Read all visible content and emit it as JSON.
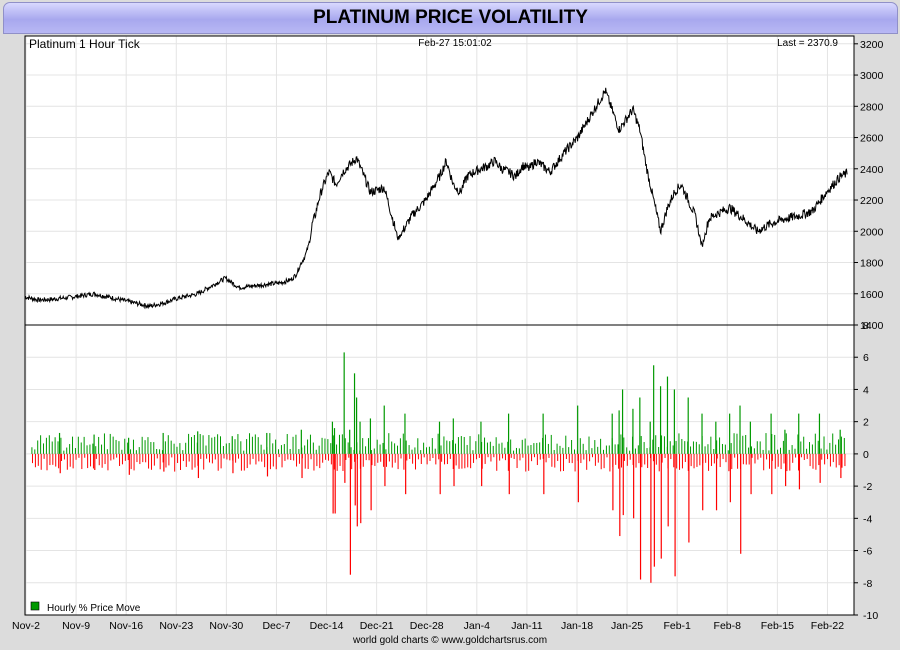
{
  "page": {
    "title": "PLATINUM PRICE VOLATILITY",
    "footer": "world gold charts © www.goldchartsrus.com"
  },
  "colors": {
    "title_bar": "#b0b0f0",
    "price_line": "#000000",
    "up_bar": "#009900",
    "down_bar": "#ff0000",
    "grid": "#e4e4e4",
    "background": "#ffffff"
  },
  "chart_data": [
    {
      "type": "line",
      "subtitle": "Platinum 1 Hour Tick",
      "timestamp": "Feb-27  15:01:02",
      "last_label": "Last = 2370.9",
      "ylim": [
        1400,
        3250
      ],
      "yticks": [
        "1400",
        "1600",
        "1800",
        "2000",
        "2200",
        "2400",
        "2600",
        "2800",
        "3000",
        "3200"
      ],
      "grid": true,
      "x": [
        0,
        2,
        4,
        7,
        10,
        13,
        16,
        18,
        20,
        22,
        25,
        27,
        29,
        31,
        33,
        35,
        37,
        38.5,
        39.2,
        39.6,
        40,
        40.3,
        40.6,
        41,
        41.3,
        41.6,
        42,
        42.5,
        43,
        44,
        45,
        46,
        48,
        50,
        52,
        54,
        56,
        58,
        60,
        61,
        62,
        63,
        64,
        65,
        66,
        67,
        68,
        69,
        70,
        71,
        72,
        73,
        74,
        76,
        78,
        80,
        82,
        84,
        86,
        88,
        89,
        90,
        91,
        92,
        93,
        94,
        95,
        96,
        97,
        98,
        99,
        100,
        102,
        104,
        106,
        108,
        110,
        112,
        114,
        116,
        118,
        119
      ],
      "y": [
        1580,
        1560,
        1565,
        1580,
        1600,
        1570,
        1540,
        1520,
        1540,
        1570,
        1600,
        1650,
        1700,
        1640,
        1650,
        1660,
        1670,
        1690,
        1720,
        1760,
        1800,
        1820,
        1850,
        1900,
        1960,
        2050,
        2100,
        2200,
        2270,
        2380,
        2300,
        2380,
        2470,
        2250,
        2280,
        1950,
        2100,
        2200,
        2350,
        2450,
        2300,
        2250,
        2350,
        2380,
        2400,
        2420,
        2450,
        2400,
        2380,
        2350,
        2420,
        2400,
        2450,
        2380,
        2500,
        2600,
        2750,
        2900,
        2650,
        2780,
        2650,
        2400,
        2200,
        2000,
        2150,
        2250,
        2300,
        2200,
        2100,
        1900,
        2080,
        2110,
        2150,
        2080,
        2000,
        2050,
        2080,
        2100,
        2130,
        2250,
        2350,
        2370
      ]
    },
    {
      "type": "bar",
      "legend": "Hourly % Price Move",
      "ylim": [
        -10,
        8
      ],
      "yticks": [
        "-10",
        "-8",
        "-6",
        "-4",
        "-2",
        "0",
        "2",
        "4",
        "6",
        "8"
      ],
      "grid": true,
      "x": [
        5,
        10,
        15,
        20,
        25,
        30,
        35,
        40,
        44.5,
        44.8,
        46.2,
        47,
        47.7,
        48,
        48.5,
        50,
        52,
        55,
        60,
        62,
        66,
        70,
        75,
        80,
        85,
        86,
        86.5,
        88,
        89,
        90.5,
        91,
        92,
        93,
        94,
        96,
        98,
        100,
        102,
        103.5,
        105,
        108,
        110,
        112,
        115,
        118
      ],
      "up": [
        1.3,
        1.2,
        1.0,
        1.3,
        1.4,
        1.1,
        1.3,
        1.5,
        2.0,
        1.6,
        6.3,
        1.5,
        5.0,
        3.5,
        2.0,
        2.2,
        3.0,
        2.5,
        2.0,
        2.2,
        2.0,
        2.5,
        2.5,
        3.0,
        2.5,
        2.7,
        4.0,
        2.8,
        3.5,
        2.0,
        5.5,
        4.2,
        4.8,
        4.0,
        3.5,
        2.5,
        2.0,
        2.5,
        3.0,
        2.0,
        2.5,
        1.5,
        2.5,
        2.5,
        1.5
      ],
      "down": [
        -1.2,
        -1.0,
        -1.3,
        -1.1,
        -1.5,
        -1.2,
        -1.4,
        -1.5,
        -3.7,
        -3.7,
        -1.8,
        -7.5,
        -3.2,
        -4.5,
        -4.3,
        -3.5,
        -2.0,
        -2.5,
        -2.5,
        -2.0,
        -2.0,
        -2.5,
        -2.5,
        -3.0,
        -3.5,
        -5.1,
        -3.8,
        -4.0,
        -7.8,
        -8.0,
        -7.0,
        -6.5,
        -4.5,
        -7.6,
        -5.5,
        -3.5,
        -3.5,
        -3.0,
        -6.2,
        -2.5,
        -2.5,
        -2.0,
        -2.2,
        -1.8,
        -1.5
      ]
    },
    {
      "x_tick_labels": [
        "Nov-2",
        "Nov-9",
        "Nov-16",
        "Nov-23",
        "Nov-30",
        "Dec-7",
        "Dec-14",
        "Dec-21",
        "Dec-28",
        "Jan-4",
        "Jan-11",
        "Jan-18",
        "Jan-25",
        "Feb-1",
        "Feb-8",
        "Feb-15",
        "Feb-22"
      ]
    }
  ]
}
